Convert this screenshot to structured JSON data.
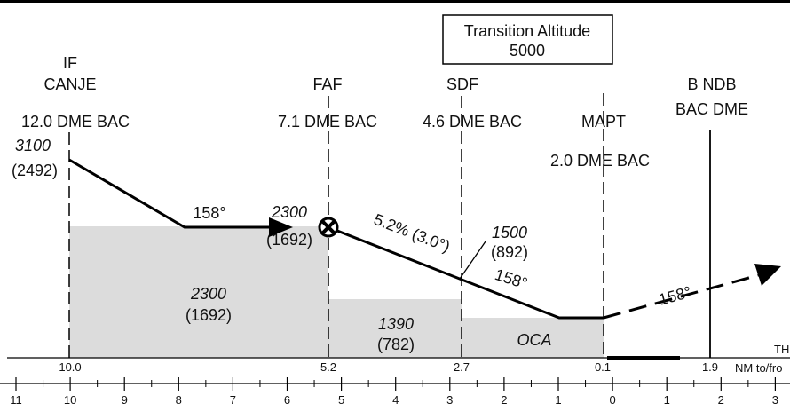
{
  "top_rule_color": "#000000",
  "transition_altitude": {
    "line1": "Transition Altitude",
    "line2": "5000"
  },
  "fixes": {
    "if": {
      "role": "IF",
      "name": "CANJE",
      "dme": "12.0 DME BAC"
    },
    "faf": {
      "role": "FAF",
      "dme": "7.1 DME BAC"
    },
    "sdf": {
      "role": "SDF",
      "dme": "4.6 DME BAC"
    },
    "mapt": {
      "role": "MAPT",
      "dme": "2.0 DME BAC"
    },
    "ndb": {
      "name": "B NDB",
      "dme": "BAC DME"
    }
  },
  "altitudes": {
    "if_alt": "3100",
    "if_height": "(2492)",
    "faf_alt": "2300",
    "faf_height": "(1692)",
    "sdf_alt": "1500",
    "sdf_height": "(892)",
    "msa1_alt": "2300",
    "msa1_height": "(1692)",
    "msa2_alt": "1390",
    "msa2_height": "(782)",
    "oca": "OCA"
  },
  "tracks": {
    "inbound": "158°",
    "final_gradient": "5.2% (3.0°)",
    "final_track": "158°",
    "missed_track": "158°"
  },
  "dme_row": [
    "10.0",
    "5.2",
    "2.7",
    "0.1",
    "1.9"
  ],
  "threshold_label": "TH",
  "scale_unit": "NM to/fro",
  "nm_scale": [
    "11",
    "10",
    "9",
    "8",
    "7",
    "6",
    "5",
    "4",
    "3",
    "2",
    "1",
    "0",
    "1",
    "2",
    "3"
  ],
  "shading_color": "#dcdcdc"
}
